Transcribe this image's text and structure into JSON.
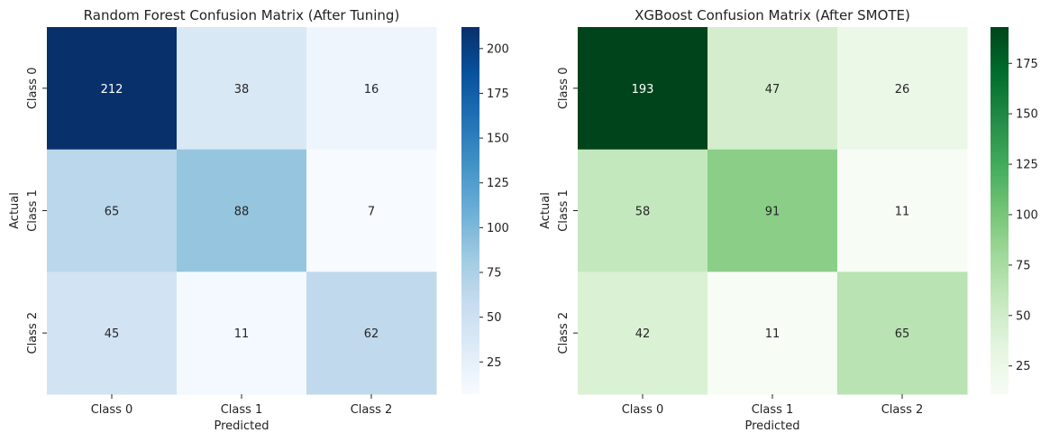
{
  "chart_data": [
    {
      "type": "heatmap",
      "title": "Random Forest Confusion Matrix (After Tuning)",
      "xlabel": "Predicted",
      "ylabel": "Actual",
      "x_categories": [
        "Class 0",
        "Class 1",
        "Class 2"
      ],
      "y_categories": [
        "Class 0",
        "Class 1",
        "Class 2"
      ],
      "values": [
        [
          212,
          38,
          16
        ],
        [
          65,
          88,
          7
        ],
        [
          45,
          11,
          62
        ]
      ],
      "colormap": "Blues",
      "colors": [
        "#f7fbff",
        "#deebf7",
        "#c6dbef",
        "#9ecae1",
        "#6baed6",
        "#4292c6",
        "#2171b5",
        "#08519c",
        "#08306b"
      ],
      "vmin": 7,
      "vmax": 212,
      "colorbar_ticks": [
        25,
        50,
        75,
        100,
        125,
        150,
        175,
        200
      ]
    },
    {
      "type": "heatmap",
      "title": "XGBoost Confusion Matrix (After SMOTE)",
      "xlabel": "Predicted",
      "ylabel": "Actual",
      "x_categories": [
        "Class 0",
        "Class 1",
        "Class 2"
      ],
      "y_categories": [
        "Class 0",
        "Class 1",
        "Class 2"
      ],
      "values": [
        [
          193,
          47,
          26
        ],
        [
          58,
          91,
          11
        ],
        [
          42,
          11,
          65
        ]
      ],
      "colormap": "Greens",
      "colors": [
        "#f7fcf5",
        "#e5f5e0",
        "#c7e9c0",
        "#a1d99b",
        "#74c476",
        "#41ab5d",
        "#238b45",
        "#006d2c",
        "#00441b"
      ],
      "vmin": 11,
      "vmax": 193,
      "colorbar_ticks": [
        25,
        50,
        75,
        100,
        125,
        150,
        175
      ]
    }
  ]
}
